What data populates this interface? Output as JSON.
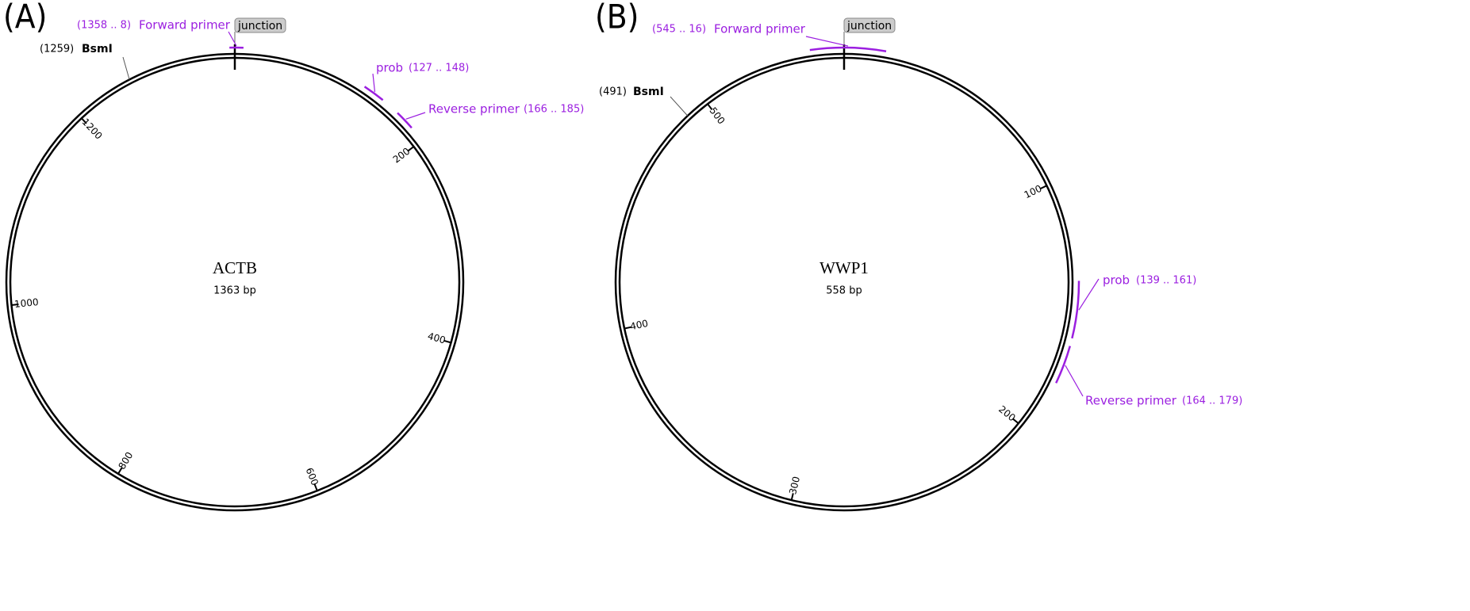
{
  "panels": [
    {
      "label": "(A)",
      "name": "ACTB",
      "size": "1363 bp",
      "junction": "junction",
      "site": {
        "position": "(1259)",
        "name": "BsmI"
      },
      "features": [
        {
          "name": "Forward primer",
          "range": "(1358 .. 8)"
        },
        {
          "name": "prob",
          "range": "(127 .. 148)"
        },
        {
          "name": "Reverse primer",
          "range": "(166 .. 185)"
        }
      ],
      "ticks": [
        200,
        400,
        600,
        800,
        1000,
        1200
      ]
    },
    {
      "label": "(B)",
      "name": "WWP1",
      "size": "558 bp",
      "junction": "junction",
      "site": {
        "position": "(491)",
        "name": "BsmI"
      },
      "features": [
        {
          "name": "Forward primer",
          "range": "(545 .. 16)"
        },
        {
          "name": "prob",
          "range": "(139 .. 161)"
        },
        {
          "name": "Reverse primer",
          "range": "(164 .. 179)"
        }
      ],
      "ticks": [
        100,
        200,
        300,
        400,
        500
      ]
    }
  ]
}
